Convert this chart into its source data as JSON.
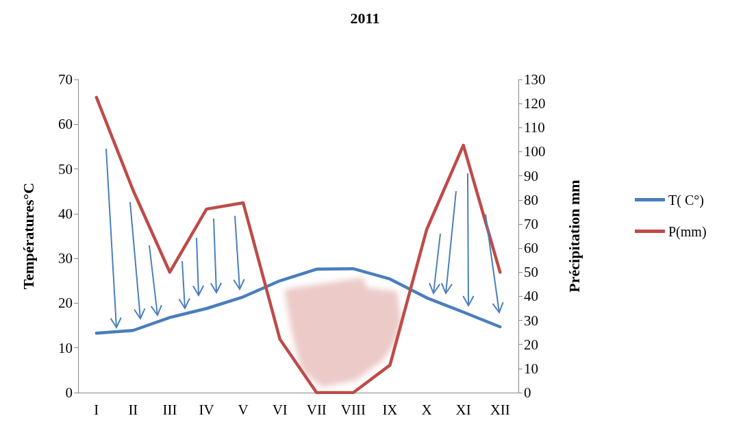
{
  "chart_data": {
    "type": "line",
    "title": "2011",
    "ylabel": "Températures°C",
    "y2label": "Précipitation mm",
    "categories": [
      "I",
      "II",
      "III",
      "IV",
      "V",
      "VI",
      "VII",
      "VIII",
      "IX",
      "X",
      "XI",
      "XII"
    ],
    "series": [
      {
        "name": "T( C°)",
        "color": "#4a7ebb",
        "values": [
          13.3,
          13.9,
          16.8,
          18.8,
          21.4,
          25.0,
          27.6,
          27.7,
          25.4,
          21.2,
          18.0,
          14.7
        ]
      },
      {
        "name": "P(mm)",
        "color": "#be4b48",
        "axis": "y2",
        "values": [
          122.6,
          84,
          50,
          76.2,
          78.8,
          22.2,
          0,
          0,
          11.4,
          67.7,
          102.7,
          50
        ]
      }
    ],
    "ylim": [
      0,
      70
    ],
    "yticks": [
      0,
      10,
      20,
      30,
      40,
      50,
      60,
      70
    ],
    "y2lim": [
      0,
      130
    ],
    "y2ticks": [
      0,
      10,
      20,
      30,
      40,
      50,
      60,
      70,
      80,
      90,
      100,
      110,
      120,
      130
    ],
    "grid": false,
    "legend": "right",
    "marker": "none",
    "line_style": "solid"
  }
}
